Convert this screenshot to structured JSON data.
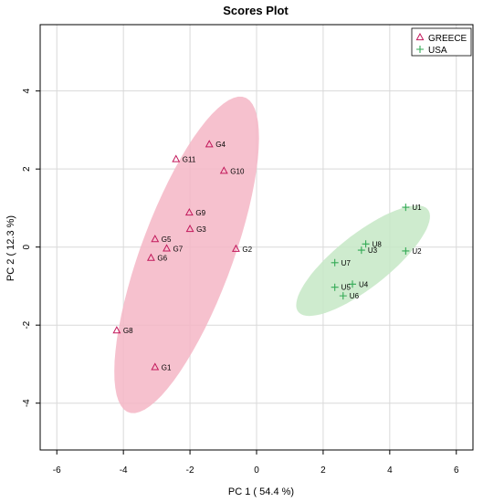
{
  "chart_data": {
    "type": "scatter",
    "title": "Scores Plot",
    "xlabel": "PC 1 ( 54.4 %)",
    "ylabel": "PC 2 ( 12.3 %)",
    "xlim": [
      -6.5,
      6.5
    ],
    "ylim": [
      -5.2,
      5.7
    ],
    "x_ticks": [
      -6,
      -4,
      -2,
      0,
      2,
      4,
      6
    ],
    "y_ticks": [
      -4,
      -2,
      0,
      2,
      4
    ],
    "grid": true,
    "legend_position": "top-right",
    "series": [
      {
        "name": "GREECE",
        "marker": "triangle",
        "color": "#c2185b",
        "ellipse_fill": "#f4b6c6",
        "ellipse": {
          "cx": -2.1,
          "cy": -0.2,
          "semi_major": 4.4,
          "semi_minor": 1.35,
          "angle_deg": 66
        },
        "points": [
          {
            "label": "G1",
            "x": -3.05,
            "y": -3.08
          },
          {
            "label": "G2",
            "x": -0.62,
            "y": -0.05
          },
          {
            "label": "G3",
            "x": -2.0,
            "y": 0.46
          },
          {
            "label": "G4",
            "x": -1.42,
            "y": 2.63
          },
          {
            "label": "G5",
            "x": -3.05,
            "y": 0.2
          },
          {
            "label": "G6",
            "x": -3.17,
            "y": -0.28
          },
          {
            "label": "G7",
            "x": -2.7,
            "y": -0.04
          },
          {
            "label": "G8",
            "x": -4.2,
            "y": -2.14
          },
          {
            "label": "G9",
            "x": -2.02,
            "y": 0.88
          },
          {
            "label": "G10",
            "x": -0.98,
            "y": 1.95
          },
          {
            "label": "G11",
            "x": -2.42,
            "y": 2.25
          }
        ]
      },
      {
        "name": "USA",
        "marker": "plus",
        "color": "#33aa55",
        "ellipse_fill": "#c6e8c6",
        "ellipse": {
          "cx": 3.2,
          "cy": -0.35,
          "semi_major": 2.35,
          "semi_minor": 0.72,
          "angle_deg": 33
        },
        "points": [
          {
            "label": "U1",
            "x": 4.48,
            "y": 1.02
          },
          {
            "label": "U2",
            "x": 4.48,
            "y": -0.1
          },
          {
            "label": "U3",
            "x": 3.15,
            "y": -0.08
          },
          {
            "label": "U4",
            "x": 2.88,
            "y": -0.95
          },
          {
            "label": "U5",
            "x": 2.35,
            "y": -1.03
          },
          {
            "label": "U6",
            "x": 2.6,
            "y": -1.25
          },
          {
            "label": "U7",
            "x": 2.35,
            "y": -0.4
          },
          {
            "label": "U8",
            "x": 3.28,
            "y": 0.08
          }
        ]
      }
    ]
  }
}
